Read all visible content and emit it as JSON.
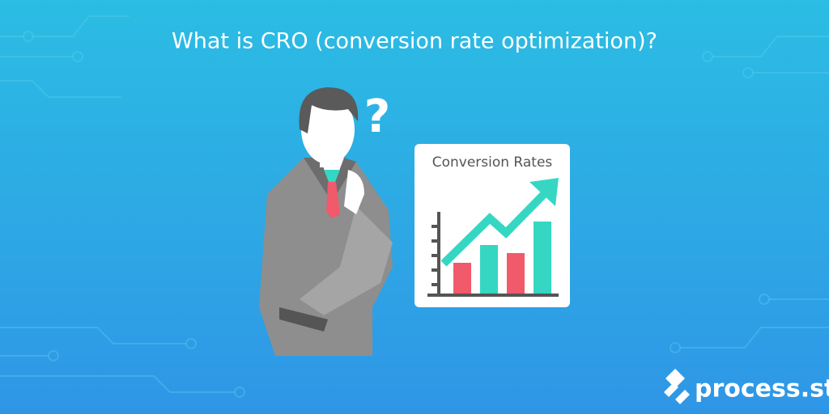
{
  "header": {
    "title": "What is CRO (conversion rate optimization)?"
  },
  "illustration": {
    "question_mark": "?",
    "card_title": "Conversion Rates"
  },
  "logo": {
    "text": "process.st"
  }
}
